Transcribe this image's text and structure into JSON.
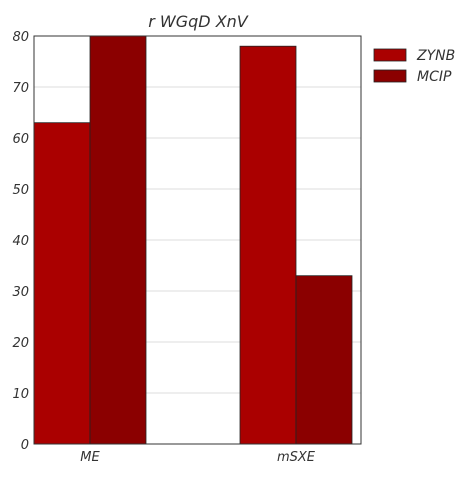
{
  "chart_data": {
    "type": "bar",
    "title": "r WGqD XnV",
    "xlabel": "",
    "ylabel": "",
    "categories": [
      "ME",
      "mSXE"
    ],
    "series": [
      {
        "name": "ZYNB",
        "values": [
          63,
          78
        ],
        "color": "#aa0000"
      },
      {
        "name": "MCIP",
        "values": [
          80,
          33
        ],
        "color": "#8b0000"
      }
    ],
    "ylim": [
      0,
      80
    ],
    "yticks": [
      0,
      10,
      20,
      30,
      40,
      50,
      60,
      70,
      80
    ],
    "grid": true,
    "legend": "top-right, outside plot"
  }
}
